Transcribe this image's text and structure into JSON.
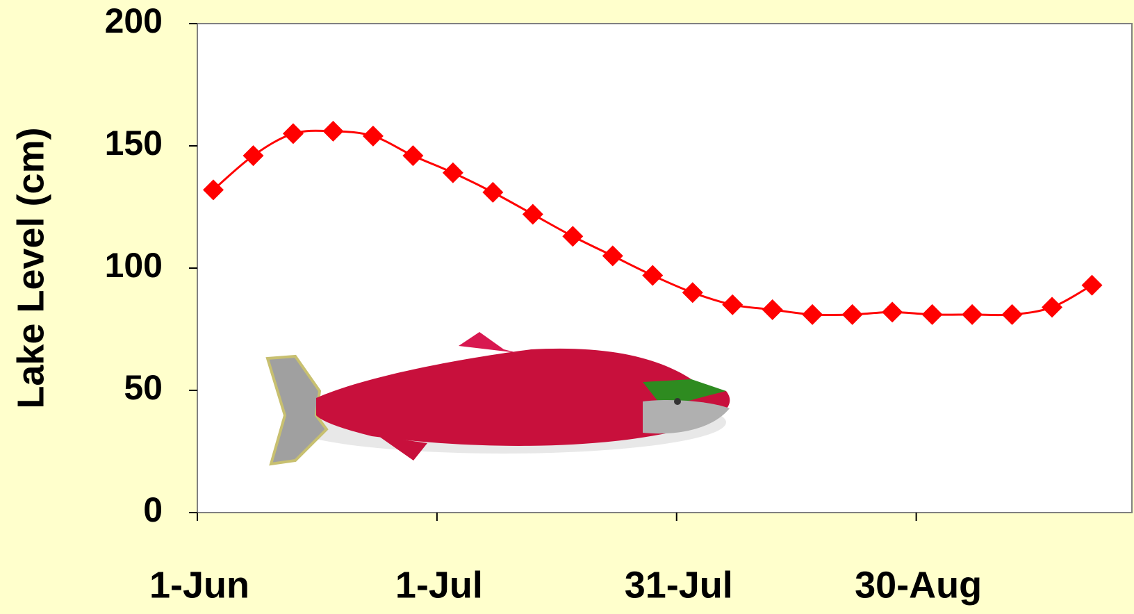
{
  "chart_data": {
    "type": "line",
    "y_label": "Lake Level (cm)",
    "x": [
      "3-Jun",
      "8-Jun",
      "13-Jun",
      "18-Jun",
      "23-Jun",
      "28-Jun",
      "3-Jul",
      "8-Jul",
      "13-Jul",
      "18-Jul",
      "23-Jul",
      "28-Jul",
      "2-Aug",
      "7-Aug",
      "12-Aug",
      "17-Aug",
      "22-Aug",
      "27-Aug",
      "1-Sep",
      "6-Sep",
      "11-Sep",
      "16-Sep",
      "21-Sep"
    ],
    "values": [
      132,
      146,
      155,
      156,
      154,
      146,
      139,
      131,
      122,
      113,
      105,
      97,
      90,
      85,
      83,
      81,
      81,
      82,
      81,
      81,
      81,
      84,
      93
    ],
    "color": "#ff0000",
    "xlim": [
      "1-Jun",
      "26-Sep"
    ],
    "xticks": [
      "1-Jun",
      "1-Jul",
      "31-Jul",
      "30-Aug"
    ],
    "ylim": [
      0,
      200
    ],
    "yticks": [
      0,
      50,
      100,
      150,
      200
    ],
    "grid": false
  }
}
